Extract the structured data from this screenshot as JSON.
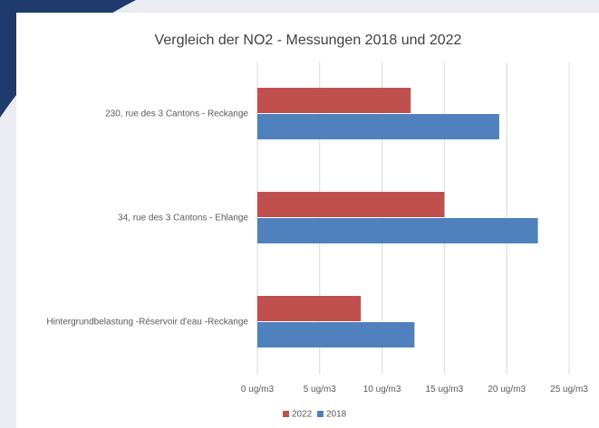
{
  "chart_data": {
    "type": "hbar",
    "title": "Vergleich der NO2 - Messungen 2018 und 2022",
    "categories": [
      "230, rue des 3 Cantons - Reckange",
      "34, rue des 3 Cantons - Ehlange",
      "Hintergrundbelastung -Réservoir d'eau -Reckange"
    ],
    "series": [
      {
        "name": "2022",
        "color": "#c0504d",
        "values": [
          12.3,
          15.0,
          8.3
        ]
      },
      {
        "name": "2018",
        "color": "#4f81bd",
        "values": [
          19.4,
          22.5,
          12.6
        ]
      }
    ],
    "xlim": [
      0,
      25
    ],
    "xticks": [
      {
        "value": 0,
        "label": "0 ug/m3"
      },
      {
        "value": 5,
        "label": "5 ug/m3"
      },
      {
        "value": 10,
        "label": "10 ug/m3"
      },
      {
        "value": 15,
        "label": "15 ug/m3"
      },
      {
        "value": 20,
        "label": "20 ug/m3"
      },
      {
        "value": 25,
        "label": "25 ug/m3"
      }
    ],
    "grid": true,
    "legend": "bottom"
  }
}
